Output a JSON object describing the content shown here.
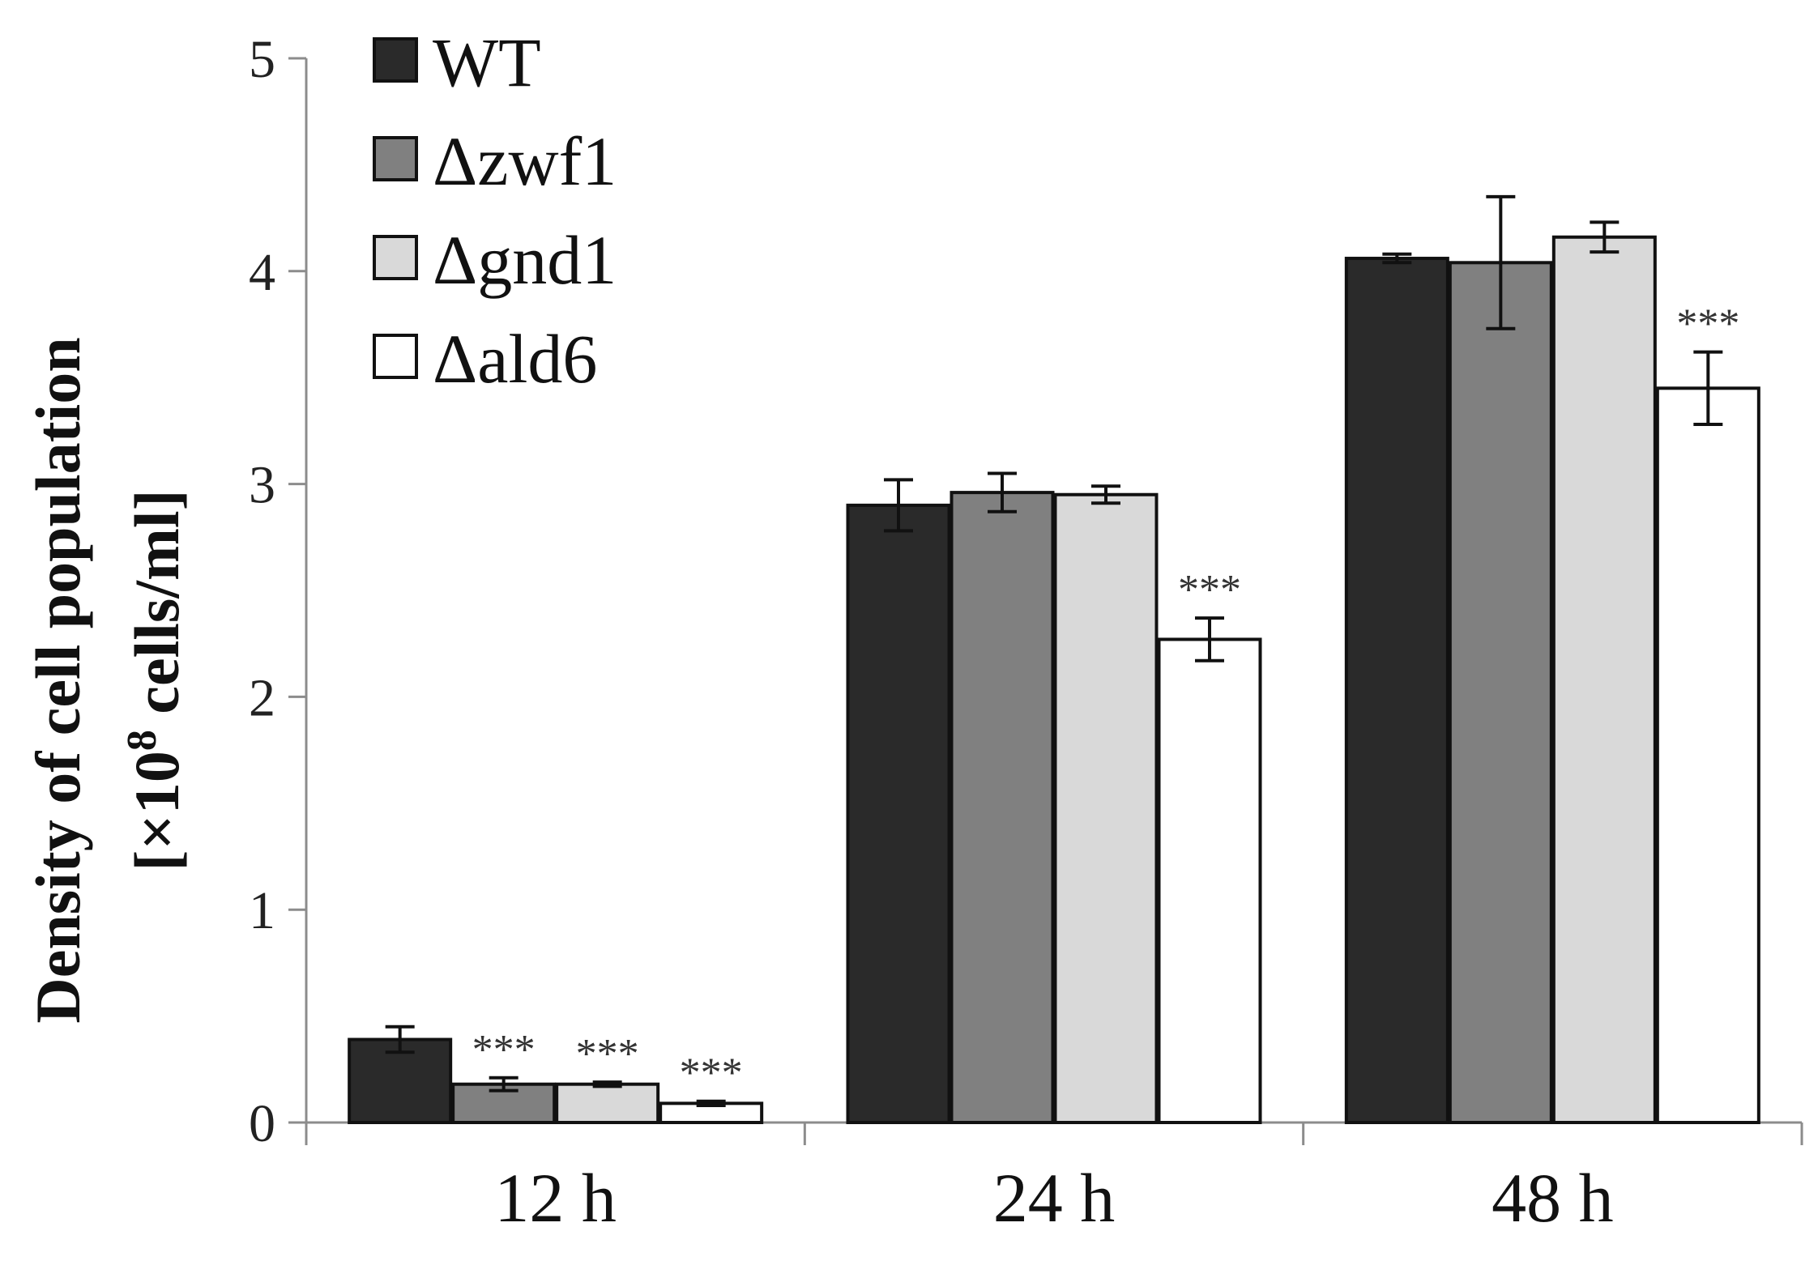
{
  "chart_data": {
    "type": "bar",
    "title": "",
    "xlabel": "",
    "ylabel": "Density of cell population",
    "ylabel_line2_prefix": "[×10",
    "ylabel_line2_sup": "8",
    "ylabel_line2_suffix": " cells/ml]",
    "ylim": [
      0,
      5
    ],
    "yticks": [
      "0",
      "1",
      "2",
      "3",
      "4",
      "5"
    ],
    "categories": [
      "12 h",
      "24 h",
      "48 h"
    ],
    "legend_position": "top-left",
    "series": [
      {
        "name": "WT",
        "color": "#2a2a2a",
        "values": [
          0.39,
          2.9,
          4.06
        ],
        "errors": [
          0.06,
          0.12,
          0.02
        ],
        "annotations": [
          "",
          "",
          ""
        ]
      },
      {
        "name": "Δzwf1",
        "color": "#808080",
        "values": [
          0.18,
          2.96,
          4.04
        ],
        "errors": [
          0.03,
          0.09,
          0.31
        ],
        "annotations": [
          "***",
          "",
          ""
        ]
      },
      {
        "name": "Δgnd1",
        "color": "#d9d9d9",
        "values": [
          0.18,
          2.95,
          4.16
        ],
        "errors": [
          0.01,
          0.04,
          0.07
        ],
        "annotations": [
          "***",
          "",
          ""
        ]
      },
      {
        "name": "Δald6",
        "color": "#ffffff",
        "values": [
          0.09,
          2.27,
          3.45
        ],
        "errors": [
          0.01,
          0.1,
          0.17
        ],
        "annotations": [
          "***",
          "***",
          "***"
        ]
      }
    ]
  }
}
